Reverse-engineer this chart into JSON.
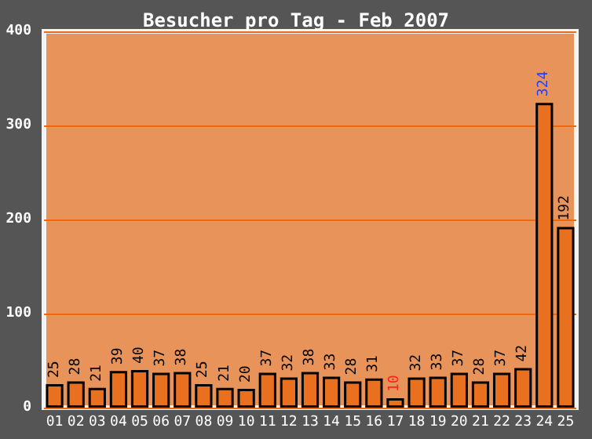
{
  "chart_data": {
    "type": "bar",
    "title": "Besucher pro Tag - Feb 2007",
    "categories": [
      "01",
      "02",
      "03",
      "04",
      "05",
      "06",
      "07",
      "08",
      "09",
      "10",
      "11",
      "12",
      "13",
      "14",
      "15",
      "16",
      "17",
      "18",
      "19",
      "20",
      "21",
      "22",
      "23",
      "24",
      "25"
    ],
    "values": [
      25,
      28,
      21,
      39,
      40,
      37,
      38,
      25,
      21,
      20,
      37,
      32,
      38,
      33,
      28,
      31,
      10,
      32,
      33,
      37,
      28,
      37,
      42,
      324,
      192
    ],
    "color": "#e8701e",
    "data_labels": true,
    "ylim": [
      0,
      400
    ],
    "yticks": [
      0,
      100,
      200,
      300,
      400
    ],
    "grid": "y"
  }
}
